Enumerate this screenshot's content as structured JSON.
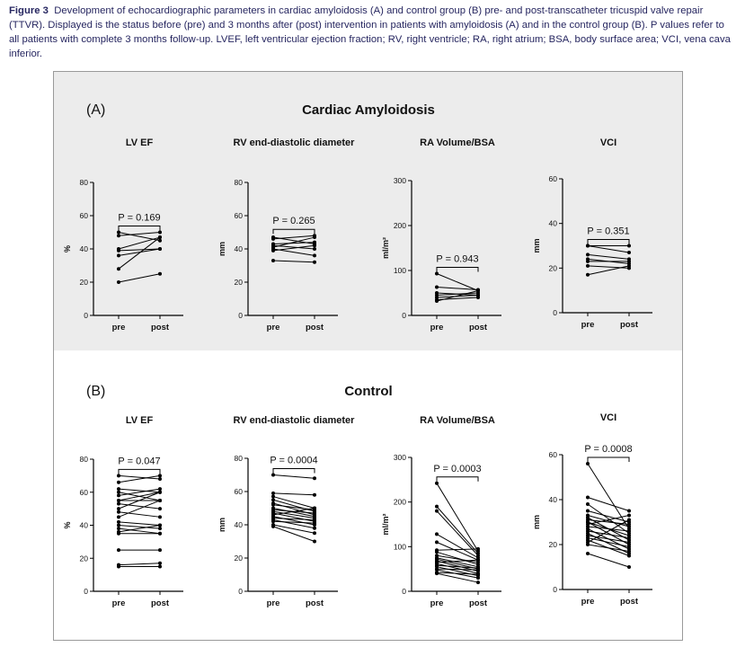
{
  "caption": {
    "label": "Figure 3",
    "text": "Development of echocardiographic parameters in cardiac amyloidosis (A) and control group (B) pre- and post-transcatheter tricuspid valve repair (TTVR). Displayed is the status before (pre) and 3 months after (post) intervention in patients with amyloidosis (A) and in the control group (B). P values refer to all patients with complete 3 months follow-up. LVEF, left ventricular ejection fraction; RV, right ventricle; RA, right atrium; BSA, body surface area; VCI, vena cava inferior."
  },
  "colors": {
    "panel_a_background": "#ececec",
    "line": "#000000",
    "border": "#9a9a9a"
  },
  "panels": [
    {
      "letter": "(A)",
      "title": "Cardiac Amyloidosis"
    },
    {
      "letter": "(B)",
      "title": "Control"
    }
  ],
  "chart_data": [
    {
      "type": "line",
      "panel": "A",
      "title": "LV EF",
      "ylabel": "%",
      "categories": [
        "pre",
        "post"
      ],
      "ylim": [
        0,
        80
      ],
      "yticks": [
        0,
        20,
        40,
        60,
        80
      ],
      "p_label": "P = 0.169",
      "series": [
        {
          "values": [
            50,
            45
          ]
        },
        {
          "values": [
            48,
            50
          ]
        },
        {
          "values": [
            40,
            47
          ]
        },
        {
          "values": [
            39,
            40
          ]
        },
        {
          "values": [
            36,
            40
          ]
        },
        {
          "values": [
            28,
            47
          ]
        },
        {
          "values": [
            20,
            25
          ]
        }
      ]
    },
    {
      "type": "line",
      "panel": "A",
      "title": "RV end-diastolic diameter",
      "ylabel": "mm",
      "categories": [
        "pre",
        "post"
      ],
      "ylim": [
        0,
        80
      ],
      "yticks": [
        0,
        20,
        40,
        60,
        80
      ],
      "p_label": "P = 0.265",
      "series": [
        {
          "values": [
            47,
            43
          ]
        },
        {
          "values": [
            46,
            48
          ]
        },
        {
          "values": [
            43,
            44
          ]
        },
        {
          "values": [
            42,
            40
          ]
        },
        {
          "values": [
            41,
            47
          ]
        },
        {
          "values": [
            40,
            36
          ]
        },
        {
          "values": [
            39,
            42
          ]
        },
        {
          "values": [
            33,
            32
          ]
        }
      ]
    },
    {
      "type": "line",
      "panel": "A",
      "title": "RA Volume/BSA",
      "ylabel": "ml/m²",
      "categories": [
        "pre",
        "post"
      ],
      "ylim": [
        0,
        300
      ],
      "yticks": [
        0,
        100,
        200,
        300
      ],
      "p_label": "P = 0.943",
      "series": [
        {
          "values": [
            93,
            55
          ]
        },
        {
          "values": [
            63,
            57
          ]
        },
        {
          "values": [
            50,
            45
          ]
        },
        {
          "values": [
            45,
            50
          ]
        },
        {
          "values": [
            40,
            45
          ]
        },
        {
          "values": [
            35,
            40
          ]
        },
        {
          "values": [
            32,
            55
          ]
        }
      ]
    },
    {
      "type": "line",
      "panel": "A",
      "title": "VCI",
      "ylabel": "mm",
      "categories": [
        "pre",
        "post"
      ],
      "ylim": [
        0,
        60
      ],
      "yticks": [
        0,
        20,
        40,
        60
      ],
      "p_label": "P = 0.351",
      "series": [
        {
          "values": [
            30,
            30
          ]
        },
        {
          "values": [
            30,
            27
          ]
        },
        {
          "values": [
            26,
            24
          ]
        },
        {
          "values": [
            24,
            22
          ]
        },
        {
          "values": [
            23,
            23
          ]
        },
        {
          "values": [
            21,
            20
          ]
        },
        {
          "values": [
            17,
            21
          ]
        }
      ]
    },
    {
      "type": "line",
      "panel": "B",
      "title": "LV EF",
      "ylabel": "%",
      "categories": [
        "pre",
        "post"
      ],
      "ylim": [
        0,
        80
      ],
      "yticks": [
        0,
        20,
        40,
        60,
        80
      ],
      "p_label": "P = 0.047",
      "series": [
        {
          "values": [
            70,
            68
          ]
        },
        {
          "values": [
            66,
            70
          ]
        },
        {
          "values": [
            62,
            60
          ]
        },
        {
          "values": [
            60,
            55
          ]
        },
        {
          "values": [
            58,
            62
          ]
        },
        {
          "values": [
            55,
            55
          ]
        },
        {
          "values": [
            55,
            60
          ]
        },
        {
          "values": [
            53,
            50
          ]
        },
        {
          "values": [
            50,
            60
          ]
        },
        {
          "values": [
            48,
            45
          ]
        },
        {
          "values": [
            45,
            55
          ]
        },
        {
          "values": [
            42,
            40
          ]
        },
        {
          "values": [
            40,
            38
          ]
        },
        {
          "values": [
            38,
            35
          ]
        },
        {
          "values": [
            36,
            40
          ]
        },
        {
          "values": [
            35,
            35
          ]
        },
        {
          "values": [
            25,
            25
          ]
        },
        {
          "values": [
            16,
            17
          ]
        },
        {
          "values": [
            15,
            15
          ]
        }
      ]
    },
    {
      "type": "line",
      "panel": "B",
      "title": "RV end-diastolic diameter",
      "ylabel": "mm",
      "categories": [
        "pre",
        "post"
      ],
      "ylim": [
        0,
        80
      ],
      "yticks": [
        0,
        20,
        40,
        60,
        80
      ],
      "p_label": "P = 0.0004",
      "series": [
        {
          "values": [
            70,
            68
          ]
        },
        {
          "values": [
            59,
            58
          ]
        },
        {
          "values": [
            57,
            50
          ]
        },
        {
          "values": [
            55,
            48
          ]
        },
        {
          "values": [
            53,
            46
          ]
        },
        {
          "values": [
            52,
            49
          ]
        },
        {
          "values": [
            50,
            45
          ]
        },
        {
          "values": [
            49,
            47
          ]
        },
        {
          "values": [
            48,
            44
          ]
        },
        {
          "values": [
            47,
            42
          ]
        },
        {
          "values": [
            46,
            50
          ]
        },
        {
          "values": [
            45,
            40
          ]
        },
        {
          "values": [
            44,
            43
          ]
        },
        {
          "values": [
            43,
            38
          ]
        },
        {
          "values": [
            42,
            41
          ]
        },
        {
          "values": [
            40,
            35
          ]
        },
        {
          "values": [
            39,
            30
          ]
        }
      ]
    },
    {
      "type": "line",
      "panel": "B",
      "title": "RA Volume/BSA",
      "ylabel": "ml/m²",
      "categories": [
        "pre",
        "post"
      ],
      "ylim": [
        0,
        300
      ],
      "yticks": [
        0,
        100,
        200,
        300
      ],
      "p_label": "P = 0.0003",
      "series": [
        {
          "values": [
            242,
            90
          ]
        },
        {
          "values": [
            190,
            85
          ]
        },
        {
          "values": [
            180,
            80
          ]
        },
        {
          "values": [
            128,
            75
          ]
        },
        {
          "values": [
            110,
            70
          ]
        },
        {
          "values": [
            92,
            95
          ]
        },
        {
          "values": [
            88,
            60
          ]
        },
        {
          "values": [
            80,
            65
          ]
        },
        {
          "values": [
            75,
            55
          ]
        },
        {
          "values": [
            72,
            50
          ]
        },
        {
          "values": [
            68,
            45
          ]
        },
        {
          "values": [
            65,
            70
          ]
        },
        {
          "values": [
            62,
            40
          ]
        },
        {
          "values": [
            58,
            52
          ]
        },
        {
          "values": [
            55,
            35
          ]
        },
        {
          "values": [
            50,
            48
          ]
        },
        {
          "values": [
            48,
            30
          ]
        },
        {
          "values": [
            42,
            38
          ]
        },
        {
          "values": [
            40,
            20
          ]
        }
      ]
    },
    {
      "type": "line",
      "panel": "B",
      "title": "VCI",
      "ylabel": "mm",
      "categories": [
        "pre",
        "post"
      ],
      "ylim": [
        0,
        60
      ],
      "yticks": [
        0,
        20,
        40,
        60
      ],
      "p_label": "P = 0.0008",
      "series": [
        {
          "values": [
            56,
            27
          ]
        },
        {
          "values": [
            41,
            35
          ]
        },
        {
          "values": [
            38,
            25
          ]
        },
        {
          "values": [
            35,
            30
          ]
        },
        {
          "values": [
            33,
            28
          ]
        },
        {
          "values": [
            32,
            22
          ]
        },
        {
          "values": [
            31,
            29
          ]
        },
        {
          "values": [
            30,
            24
          ]
        },
        {
          "values": [
            30,
            20
          ]
        },
        {
          "values": [
            29,
            33
          ]
        },
        {
          "values": [
            28,
            26
          ]
        },
        {
          "values": [
            27,
            18
          ]
        },
        {
          "values": [
            26,
            23
          ]
        },
        {
          "values": [
            25,
            16
          ]
        },
        {
          "values": [
            24,
            21
          ]
        },
        {
          "values": [
            23,
            19
          ]
        },
        {
          "values": [
            22,
            15
          ]
        },
        {
          "values": [
            21,
            31
          ]
        },
        {
          "values": [
            20,
            17
          ]
        },
        {
          "values": [
            16,
            10
          ]
        }
      ]
    }
  ]
}
